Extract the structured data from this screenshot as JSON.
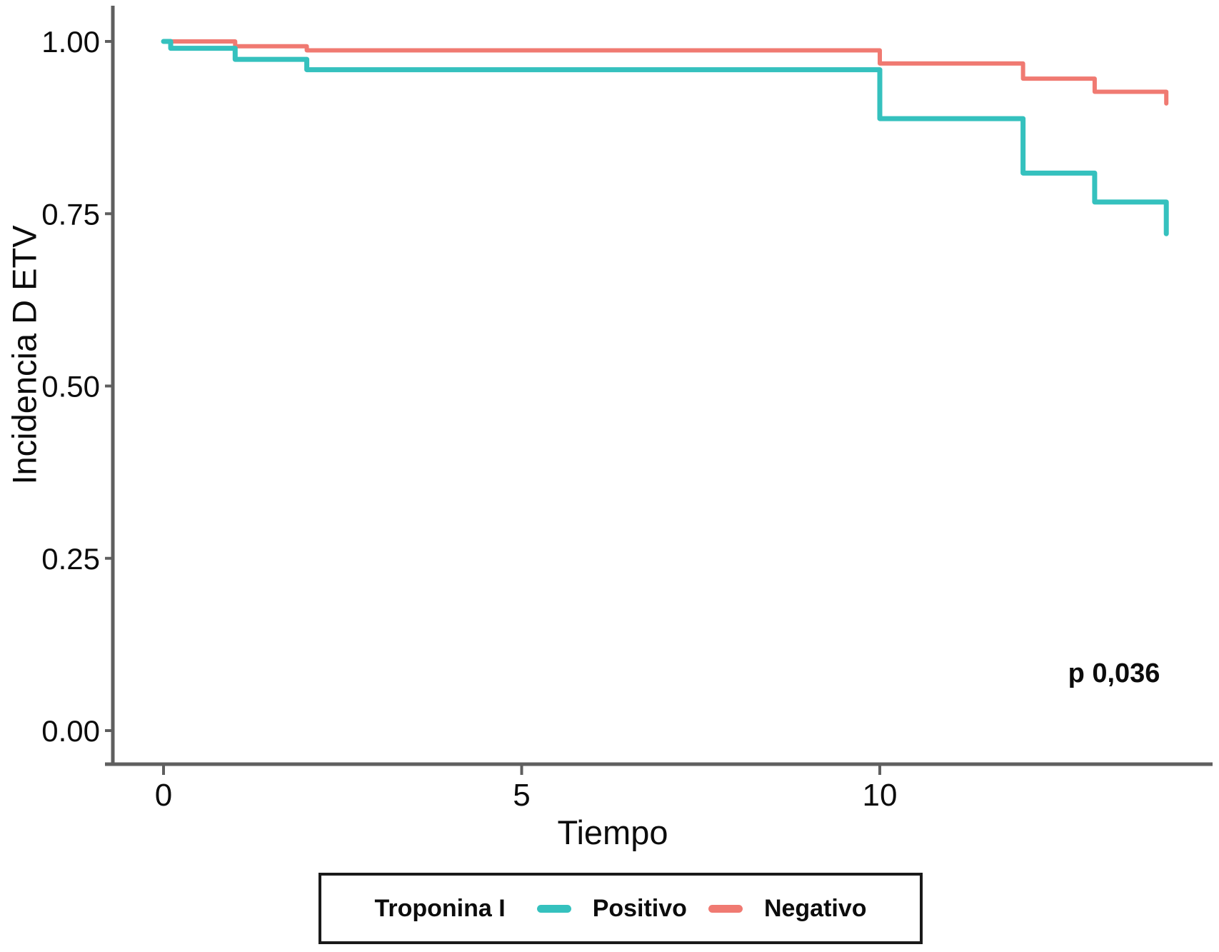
{
  "chart_data": {
    "type": "line",
    "subtype": "kaplan-meier-step",
    "title": "",
    "xlabel": "Tiempo",
    "ylabel": "Incidencia D ETV",
    "xlim": [
      0,
      14.6
    ],
    "ylim": [
      0.0,
      1.0
    ],
    "grid": false,
    "x_ticks": [
      {
        "value": 0,
        "label": "0"
      },
      {
        "value": 5,
        "label": "5"
      },
      {
        "value": 10,
        "label": "10"
      }
    ],
    "y_ticks": [
      {
        "value": 0.0,
        "label": "0.00"
      },
      {
        "value": 0.25,
        "label": "0.25"
      },
      {
        "value": 0.5,
        "label": "0.50"
      },
      {
        "value": 0.75,
        "label": "0.75"
      },
      {
        "value": 1.0,
        "label": "1.00"
      }
    ],
    "series": [
      {
        "name": "Negativo",
        "color": "#f07a72",
        "stroke_width": 6,
        "points": [
          [
            0,
            1.0
          ],
          [
            1,
            0.993
          ],
          [
            2,
            0.987
          ],
          [
            10,
            0.968
          ],
          [
            12,
            0.946
          ],
          [
            13,
            0.927
          ],
          [
            14,
            0.91
          ]
        ]
      },
      {
        "name": "Positivo",
        "color": "#35c1be",
        "stroke_width": 7,
        "points": [
          [
            0,
            1.0
          ],
          [
            0.1,
            0.99
          ],
          [
            1,
            0.974
          ],
          [
            2,
            0.959
          ],
          [
            10,
            0.888
          ],
          [
            12,
            0.809
          ],
          [
            13,
            0.767
          ],
          [
            14,
            0.721
          ]
        ]
      }
    ],
    "annotation": {
      "text": "p 0,036"
    },
    "legend": {
      "position": "bottom",
      "title": "Troponina I",
      "entries": [
        {
          "label": "Positivo",
          "color": "#35c1be"
        },
        {
          "label": "Negativo",
          "color": "#f07a72"
        }
      ]
    },
    "axis_color": "#5f5f5f",
    "text_color": "#0c0c0c"
  }
}
